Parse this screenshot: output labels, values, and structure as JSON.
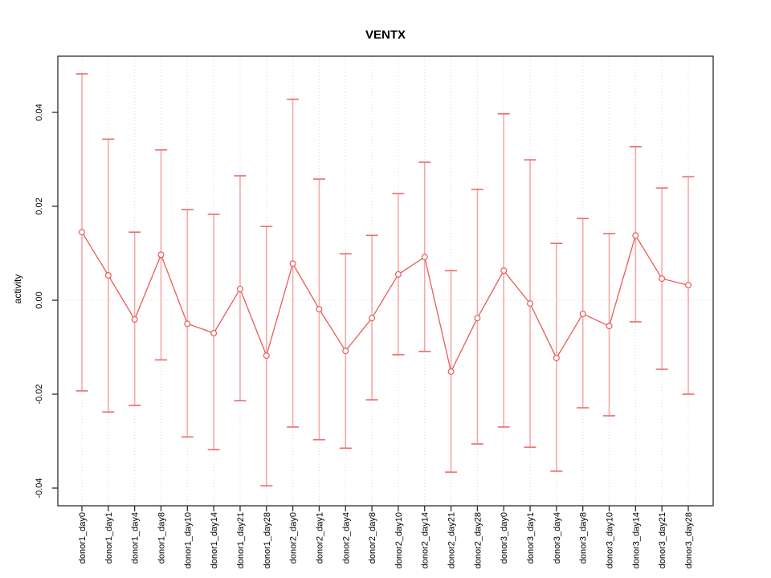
{
  "chart_data": {
    "type": "line",
    "subtype": "points-with-error-bars",
    "title": "VENTX",
    "xlabel": "",
    "ylabel": "activity",
    "legend": "none",
    "grid": "vertical-dotted-gridlines-and-dotted-zero-line",
    "ylim": [
      -0.045,
      0.05
    ],
    "yticks": [
      {
        "label": "-0.04",
        "value": -0.04
      },
      {
        "label": "-0.02",
        "value": -0.02
      },
      {
        "label": "0.00",
        "value": 0.0
      },
      {
        "label": "0.02",
        "value": 0.02
      },
      {
        "label": "0.04",
        "value": 0.04
      }
    ],
    "categories": [
      "donor1_day0",
      "donor1_day1",
      "donor1_day4",
      "donor1_day8",
      "donor1_day10",
      "donor1_day14",
      "donor1_day21",
      "donor1_day28",
      "donor2_day0",
      "donor2_day1",
      "donor2_day4",
      "donor2_day8",
      "donor2_day10",
      "donor2_day14",
      "donor2_day21",
      "donor2_day28",
      "donor3_day0",
      "donor3_day1",
      "donor3_day4",
      "donor3_day8",
      "donor3_day10",
      "donor3_day14",
      "donor3_day21",
      "donor3_day28"
    ],
    "series": [
      {
        "name": "mean",
        "values": [
          0.0145,
          0.0053,
          -0.0041,
          0.0097,
          -0.005,
          -0.007,
          0.0024,
          -0.0118,
          0.0078,
          -0.0019,
          -0.0108,
          -0.0038,
          0.0055,
          0.0092,
          -0.0152,
          -0.0038,
          0.0063,
          -0.0007,
          -0.0123,
          -0.0029,
          -0.0055,
          0.0138,
          0.0046,
          0.0032
        ]
      },
      {
        "name": "ci_lower",
        "values": [
          -0.0193,
          -0.0238,
          -0.0224,
          -0.0127,
          -0.0291,
          -0.0318,
          -0.0214,
          -0.0395,
          -0.027,
          -0.0297,
          -0.0315,
          -0.0212,
          -0.0116,
          -0.0109,
          -0.0366,
          -0.0306,
          -0.027,
          -0.0313,
          -0.0364,
          -0.0229,
          -0.0246,
          -0.0046,
          -0.0147,
          -0.02
        ]
      },
      {
        "name": "ci_upper",
        "values": [
          0.0482,
          0.0343,
          0.0145,
          0.032,
          0.0193,
          0.0183,
          0.0265,
          0.0157,
          0.0428,
          0.0258,
          0.0099,
          0.0138,
          0.0227,
          0.0294,
          0.0063,
          0.0236,
          0.0397,
          0.0299,
          0.0121,
          0.0174,
          0.0142,
          0.0327,
          0.0239,
          0.0263
        ]
      }
    ],
    "colors": {
      "point_and_line": "#e95c57",
      "errorbar_stem": "#f5a9a9",
      "errorbar_cap": "#ee6b6b",
      "gridline": "#d9d9d9",
      "frame": "#2b2b2b",
      "background": "#ffffff",
      "text": "#000000"
    }
  }
}
